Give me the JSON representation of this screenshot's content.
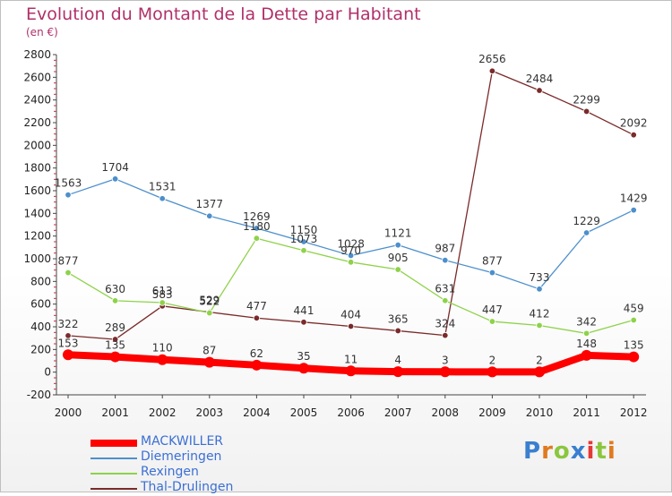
{
  "title": "Evolution du Montant de la Dette par Habitant",
  "unit": "(en €)",
  "logo": "Proxiti",
  "chart_data": {
    "type": "line",
    "x": [
      "2000",
      "2001",
      "2002",
      "2003",
      "2004",
      "2005",
      "2006",
      "2007",
      "2008",
      "2009",
      "2010",
      "2011",
      "2012"
    ],
    "ylim": [
      -200,
      2800
    ],
    "yticks": [
      -200,
      0,
      200,
      400,
      600,
      800,
      1000,
      1200,
      1400,
      1600,
      1800,
      2000,
      2200,
      2400,
      2600,
      2800
    ],
    "grid": false,
    "legend_position": "bottom-left",
    "series": [
      {
        "name": "MACKWILLER",
        "color": "#ff0000",
        "values": [
          153,
          135,
          110,
          87,
          62,
          35,
          11,
          4,
          3,
          2,
          2,
          148,
          135
        ]
      },
      {
        "name": "Diemeringen",
        "color": "#4d8fcc",
        "values": [
          1563,
          1704,
          1531,
          1377,
          1269,
          1150,
          1028,
          1121,
          987,
          877,
          733,
          1229,
          1429
        ]
      },
      {
        "name": "Rexingen",
        "color": "#8ed24a",
        "values": [
          877,
          630,
          613,
          522,
          1180,
          1073,
          970,
          905,
          631,
          447,
          412,
          342,
          459
        ]
      },
      {
        "name": "Thal-Drulingen",
        "color": "#7a2a2a",
        "values": [
          322,
          289,
          583,
          529,
          477,
          441,
          404,
          365,
          324,
          2656,
          2484,
          2299,
          2092
        ]
      }
    ]
  }
}
